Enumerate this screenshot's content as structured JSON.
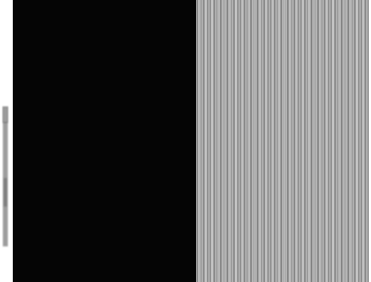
{
  "figure": {
    "dark_panel_color": "#050505",
    "light_panel_color": "#ffffff",
    "stripe_color": "#1c1c1c",
    "margin_color": "#ffffff",
    "margin_mark_color": "#4a4a4a"
  }
}
